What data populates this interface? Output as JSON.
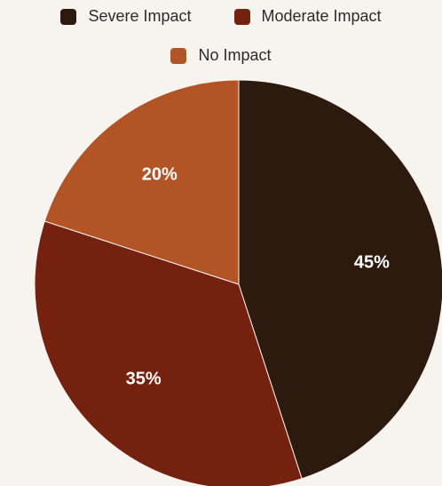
{
  "chart_data": {
    "type": "pie",
    "title": "",
    "series": [
      {
        "name": "",
        "values": [
          {
            "label": "Severe Impact",
            "value": 45,
            "display": "45%",
            "color": "#2d1a0e"
          },
          {
            "label": "Moderate Impact",
            "value": 35,
            "display": "35%",
            "color": "#74210f"
          },
          {
            "label": "No Impact",
            "value": 20,
            "display": "20%",
            "color": "#b25425"
          }
        ]
      }
    ],
    "legend": {
      "placement": "top-center",
      "items": [
        "Severe Impact",
        "Moderate Impact",
        "No Impact"
      ]
    }
  },
  "background_color": "#f7f3ef"
}
